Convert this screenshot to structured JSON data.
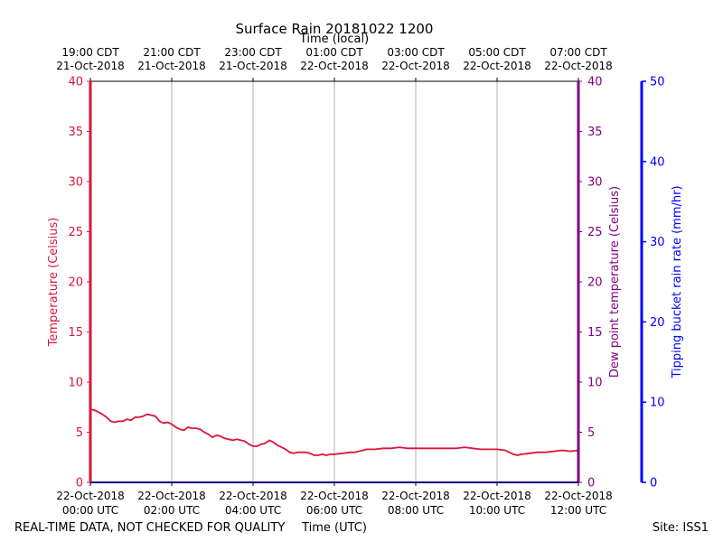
{
  "chart_data": {
    "type": "line",
    "title": "Surface Rain 20181022 1200",
    "top_axis_label": "Time (local)",
    "xlabel": "Time (UTC)",
    "ylabel_left": "Temperature (Celsius)",
    "ylabel_right": "Dew point temperature (Celsius)",
    "ylabel_far_right": "Tipping bucket rain rate (mm/hr)",
    "footer_left": "REAL-TIME DATA, NOT CHECKED FOR QUALITY",
    "footer_right": "Site: ISS1",
    "xlim": [
      0,
      12
    ],
    "ylim_left": [
      0,
      40
    ],
    "ylim_right": [
      0,
      40
    ],
    "ylim_far_right": [
      0,
      50
    ],
    "y_ticks_left": [
      0,
      5,
      10,
      15,
      20,
      25,
      30,
      35,
      40
    ],
    "y_ticks_far_right": [
      0,
      10,
      20,
      30,
      40,
      50
    ],
    "x_ticks_bottom": [
      {
        "x": 0,
        "line1": "22-Oct-2018",
        "line2": "00:00 UTC"
      },
      {
        "x": 2,
        "line1": "22-Oct-2018",
        "line2": "02:00 UTC"
      },
      {
        "x": 4,
        "line1": "22-Oct-2018",
        "line2": "04:00 UTC"
      },
      {
        "x": 6,
        "line1": "22-Oct-2018",
        "line2": "06:00 UTC"
      },
      {
        "x": 8,
        "line1": "22-Oct-2018",
        "line2": "08:00 UTC"
      },
      {
        "x": 10,
        "line1": "22-Oct-2018",
        "line2": "10:00 UTC"
      },
      {
        "x": 12,
        "line1": "22-Oct-2018",
        "line2": "12:00 UTC"
      }
    ],
    "x_ticks_top": [
      {
        "x": 0,
        "line1": "19:00 CDT",
        "line2": "21-Oct-2018"
      },
      {
        "x": 2,
        "line1": "21:00 CDT",
        "line2": "21-Oct-2018"
      },
      {
        "x": 4,
        "line1": "23:00 CDT",
        "line2": "21-Oct-2018"
      },
      {
        "x": 6,
        "line1": "01:00 CDT",
        "line2": "22-Oct-2018"
      },
      {
        "x": 8,
        "line1": "03:00 CDT",
        "line2": "22-Oct-2018"
      },
      {
        "x": 10,
        "line1": "05:00 CDT",
        "line2": "22-Oct-2018"
      },
      {
        "x": 12,
        "line1": "07:00 CDT",
        "line2": "22-Oct-2018"
      }
    ],
    "grid": "vertical",
    "colors": {
      "temperature": "#dc143c",
      "dewpoint": "#800080",
      "rain_rate": "#0000ff",
      "grid": "#b0b0b0",
      "axis": "#000000"
    },
    "series": [
      {
        "key": "temperature",
        "x": [
          0,
          0.1,
          0.25,
          0.4,
          0.5,
          0.6,
          0.7,
          0.8,
          0.9,
          1.0,
          1.1,
          1.2,
          1.3,
          1.4,
          1.5,
          1.6,
          1.7,
          1.8,
          1.9,
          2.0,
          2.1,
          2.2,
          2.3,
          2.4,
          2.5,
          2.6,
          2.7,
          2.8,
          2.9,
          3.0,
          3.1,
          3.2,
          3.3,
          3.4,
          3.5,
          3.6,
          3.7,
          3.8,
          3.9,
          4.0,
          4.1,
          4.2,
          4.3,
          4.4,
          4.5,
          4.6,
          4.7,
          4.8,
          4.9,
          5.0,
          5.1,
          5.2,
          5.3,
          5.4,
          5.5,
          5.6,
          5.7,
          5.8,
          5.9,
          6.0,
          6.2,
          6.4,
          6.5,
          6.6,
          6.7,
          6.8,
          7.0,
          7.2,
          7.4,
          7.6,
          7.8,
          8.0,
          8.2,
          8.4,
          8.6,
          8.8,
          9.0,
          9.2,
          9.4,
          9.6,
          9.8,
          10.0,
          10.2,
          10.3,
          10.4,
          10.5,
          10.6,
          10.8,
          11.0,
          11.2,
          11.4,
          11.6,
          11.8,
          12.0
        ],
        "values": [
          7.3,
          7.2,
          6.9,
          6.5,
          6.1,
          6.0,
          6.1,
          6.1,
          6.3,
          6.2,
          6.5,
          6.5,
          6.6,
          6.8,
          6.7,
          6.6,
          6.1,
          5.9,
          6.0,
          5.8,
          5.5,
          5.3,
          5.2,
          5.5,
          5.4,
          5.4,
          5.3,
          5.0,
          4.8,
          4.5,
          4.7,
          4.6,
          4.4,
          4.3,
          4.2,
          4.3,
          4.2,
          4.1,
          3.8,
          3.6,
          3.6,
          3.8,
          3.9,
          4.2,
          4.0,
          3.7,
          3.5,
          3.3,
          3.0,
          2.9,
          3.0,
          3.0,
          3.0,
          2.9,
          2.7,
          2.7,
          2.8,
          2.7,
          2.8,
          2.8,
          2.9,
          3.0,
          3.0,
          3.1,
          3.2,
          3.3,
          3.3,
          3.4,
          3.4,
          3.5,
          3.4,
          3.4,
          3.4,
          3.4,
          3.4,
          3.4,
          3.4,
          3.5,
          3.4,
          3.3,
          3.3,
          3.3,
          3.2,
          3.0,
          2.8,
          2.7,
          2.8,
          2.9,
          3.0,
          3.0,
          3.1,
          3.2,
          3.1,
          3.2
        ]
      },
      {
        "key": "dewpoint",
        "x": [
          0,
          12
        ],
        "values": [
          0,
          0
        ]
      },
      {
        "key": "rain_rate",
        "x": [
          0,
          12
        ],
        "values": [
          0,
          0
        ]
      }
    ]
  }
}
